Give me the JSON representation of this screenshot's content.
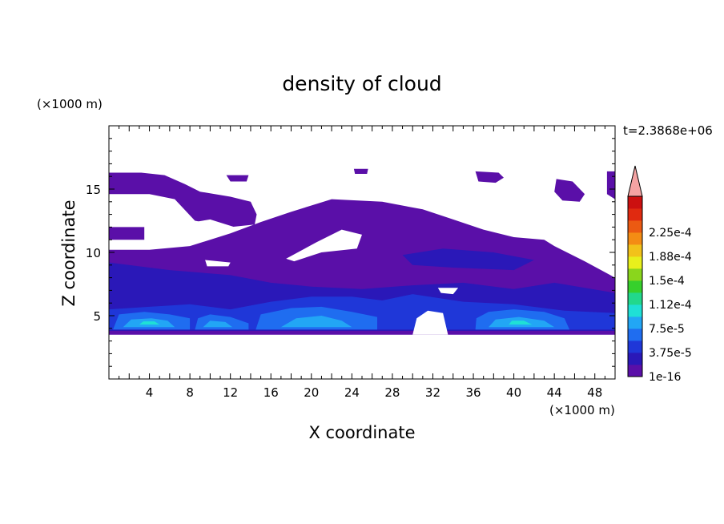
{
  "chart_data": {
    "type": "heatmap",
    "title": "density of cloud",
    "xlabel": "X coordinate",
    "ylabel": "Z coordinate",
    "x_unit": "(×1000 m)",
    "y_unit": "(×1000 m)",
    "time_label": "t=2.3868e+06",
    "xlim": [
      0,
      50
    ],
    "ylim": [
      0,
      20
    ],
    "x_ticks": [
      4,
      8,
      12,
      16,
      20,
      24,
      28,
      32,
      36,
      40,
      44,
      48
    ],
    "y_ticks": [
      5,
      10,
      15
    ],
    "colorbar": {
      "labels": [
        "1e-16",
        "3.75e-5",
        "7.5e-5",
        "1.12e-4",
        "1.5e-4",
        "1.88e-4",
        "2.25e-4"
      ],
      "colors": [
        "#5a0fa8",
        "#2a18b8",
        "#1f37d8",
        "#1f6df0",
        "#22a6f5",
        "#1fe0d6",
        "#22d88c",
        "#36d02c",
        "#8ad61c",
        "#e8f01c",
        "#f2c21a",
        "#f48c14",
        "#ec5a12",
        "#e02a10",
        "#cc1010"
      ],
      "extend_color": "#f4a3a3"
    },
    "regions": [
      {
        "level": 0,
        "poly": [
          [
            0,
            3.5
          ],
          [
            50,
            3.5
          ],
          [
            50,
            8
          ],
          [
            47,
            9.3
          ],
          [
            44,
            10.5
          ],
          [
            43,
            11
          ],
          [
            40,
            11.2
          ],
          [
            37,
            11.8
          ],
          [
            34,
            12.6
          ],
          [
            31,
            13.4
          ],
          [
            27,
            14
          ],
          [
            22,
            14.2
          ],
          [
            18,
            13.2
          ],
          [
            15,
            12.4
          ],
          [
            12,
            11.5
          ],
          [
            8,
            10.5
          ],
          [
            4,
            10.2
          ],
          [
            0,
            10.2
          ]
        ]
      },
      {
        "level": 0,
        "poly": [
          [
            0,
            12
          ],
          [
            3.5,
            12
          ],
          [
            3.5,
            11
          ],
          [
            0,
            11
          ]
        ]
      },
      {
        "level": 0,
        "poly": [
          [
            0,
            16.3
          ],
          [
            3.2,
            16.3
          ],
          [
            5.5,
            16.1
          ],
          [
            7.5,
            15.4
          ],
          [
            9,
            14.8
          ],
          [
            12,
            14.4
          ],
          [
            14,
            14
          ],
          [
            14.6,
            13
          ],
          [
            14.4,
            12.2
          ],
          [
            12,
            12
          ],
          [
            8.5,
            12.5
          ],
          [
            6.5,
            14.2
          ],
          [
            4,
            14.6
          ],
          [
            0,
            14.6
          ]
        ]
      },
      {
        "level": 0,
        "poly": [
          [
            44.2,
            15.8
          ],
          [
            45.8,
            15.6
          ],
          [
            47,
            14.6
          ],
          [
            46.5,
            14
          ],
          [
            44.8,
            14.1
          ],
          [
            44,
            14.8
          ]
        ]
      },
      {
        "level": 0,
        "poly": [
          [
            49.2,
            16.4
          ],
          [
            50,
            16.4
          ],
          [
            50,
            14.2
          ],
          [
            49.2,
            14.6
          ]
        ]
      },
      {
        "level": 0,
        "poly": [
          [
            36.2,
            16.4
          ],
          [
            38.5,
            16.3
          ],
          [
            39,
            15.9
          ],
          [
            38.2,
            15.5
          ],
          [
            36.5,
            15.6
          ]
        ]
      },
      {
        "level": 0,
        "poly": [
          [
            11.6,
            16.1
          ],
          [
            13.8,
            16.1
          ],
          [
            13.6,
            15.6
          ],
          [
            12,
            15.6
          ]
        ]
      },
      {
        "level": 0,
        "poly": [
          [
            24.2,
            16.6
          ],
          [
            25.6,
            16.6
          ],
          [
            25.5,
            16.2
          ],
          [
            24.3,
            16.2
          ]
        ]
      },
      {
        "level": 1,
        "poly": [
          [
            0,
            3.8
          ],
          [
            50,
            3.8
          ],
          [
            50,
            6.8
          ],
          [
            44,
            7.6
          ],
          [
            40,
            7.1
          ],
          [
            35,
            7.6
          ],
          [
            30,
            7.4
          ],
          [
            25,
            7.1
          ],
          [
            20,
            7.3
          ],
          [
            16,
            7.6
          ],
          [
            12,
            8.2
          ],
          [
            6,
            8.6
          ],
          [
            0,
            9.2
          ]
        ]
      },
      {
        "level": 1,
        "poly": [
          [
            29,
            9.8
          ],
          [
            33,
            10.3
          ],
          [
            38,
            10
          ],
          [
            42,
            9.4
          ],
          [
            40,
            8.6
          ],
          [
            34,
            8.8
          ],
          [
            30,
            9
          ]
        ]
      },
      {
        "level": 2,
        "poly": [
          [
            0,
            3.9
          ],
          [
            50,
            3.9
          ],
          [
            50,
            5.2
          ],
          [
            45,
            5.4
          ],
          [
            40,
            5.9
          ],
          [
            35,
            6.1
          ],
          [
            30,
            6.7
          ],
          [
            27,
            6.2
          ],
          [
            24,
            6.5
          ],
          [
            20,
            6.5
          ],
          [
            16,
            6.1
          ],
          [
            12,
            5.5
          ],
          [
            8,
            5.9
          ],
          [
            4,
            5.7
          ],
          [
            0,
            5.5
          ]
        ]
      },
      {
        "level": 3,
        "poly": [
          [
            0.4,
            3.9
          ],
          [
            8,
            3.9
          ],
          [
            8,
            4.8
          ],
          [
            6,
            5.1
          ],
          [
            3.5,
            5.3
          ],
          [
            1,
            5.1
          ]
        ]
      },
      {
        "level": 3,
        "poly": [
          [
            8.5,
            3.9
          ],
          [
            13.8,
            3.9
          ],
          [
            13.8,
            4.4
          ],
          [
            12,
            4.9
          ],
          [
            10,
            5.1
          ],
          [
            8.8,
            4.8
          ]
        ]
      },
      {
        "level": 3,
        "poly": [
          [
            14.5,
            3.9
          ],
          [
            26.5,
            3.9
          ],
          [
            26.5,
            4.9
          ],
          [
            24,
            5.3
          ],
          [
            21,
            5.7
          ],
          [
            18,
            5.6
          ],
          [
            15,
            5.1
          ]
        ]
      },
      {
        "level": 3,
        "poly": [
          [
            36.2,
            3.9
          ],
          [
            45.5,
            3.9
          ],
          [
            45,
            4.8
          ],
          [
            43,
            5.3
          ],
          [
            40,
            5.5
          ],
          [
            37.5,
            5.3
          ],
          [
            36.3,
            4.8
          ]
        ]
      },
      {
        "level": 4,
        "poly": [
          [
            1.4,
            4.1
          ],
          [
            6.5,
            4.1
          ],
          [
            5.8,
            4.6
          ],
          [
            4.2,
            4.8
          ],
          [
            2.2,
            4.7
          ]
        ]
      },
      {
        "level": 4,
        "poly": [
          [
            9.3,
            4.1
          ],
          [
            12.2,
            4.1
          ],
          [
            11.5,
            4.5
          ],
          [
            10,
            4.6
          ]
        ]
      },
      {
        "level": 4,
        "poly": [
          [
            17,
            4.1
          ],
          [
            24,
            4.1
          ],
          [
            23,
            4.6
          ],
          [
            21,
            5
          ],
          [
            18.5,
            4.8
          ]
        ]
      },
      {
        "level": 4,
        "poly": [
          [
            37.5,
            4.1
          ],
          [
            44,
            4.1
          ],
          [
            43,
            4.6
          ],
          [
            40.5,
            4.9
          ],
          [
            38.2,
            4.7
          ]
        ]
      },
      {
        "level": 5,
        "poly": [
          [
            3,
            4.3
          ],
          [
            5,
            4.3
          ],
          [
            4.5,
            4.55
          ],
          [
            3.4,
            4.55
          ]
        ]
      },
      {
        "level": 5,
        "poly": [
          [
            39.5,
            4.3
          ],
          [
            41.8,
            4.3
          ],
          [
            41,
            4.6
          ],
          [
            39.8,
            4.6
          ]
        ]
      }
    ],
    "holes": [
      {
        "poly": [
          [
            17.5,
            9.5
          ],
          [
            20.5,
            10.8
          ],
          [
            23,
            11.8
          ],
          [
            25,
            11.4
          ],
          [
            24.5,
            10.3
          ],
          [
            21,
            10
          ],
          [
            18.3,
            9.3
          ]
        ]
      },
      {
        "poly": [
          [
            9.5,
            9.4
          ],
          [
            12,
            9.2
          ],
          [
            11.8,
            8.9
          ],
          [
            9.7,
            8.9
          ]
        ]
      },
      {
        "poly": [
          [
            32.5,
            7.2
          ],
          [
            34.5,
            7.2
          ],
          [
            34,
            6.7
          ],
          [
            32.8,
            6.8
          ]
        ]
      },
      {
        "poly": [
          [
            4.2,
            11.3
          ],
          [
            10.5,
            11.4
          ],
          [
            12.4,
            12
          ],
          [
            10,
            12.6
          ],
          [
            7,
            12.2
          ],
          [
            5,
            11.9
          ]
        ]
      },
      {
        "poly": [
          [
            45.2,
            12.8
          ],
          [
            46.5,
            13.2
          ],
          [
            47,
            12.2
          ],
          [
            46,
            11.8
          ]
        ]
      },
      {
        "poly": [
          [
            30,
            3.5
          ],
          [
            33.5,
            3.5
          ],
          [
            33,
            5.2
          ],
          [
            31.5,
            5.4
          ],
          [
            30.4,
            4.8
          ]
        ]
      }
    ]
  }
}
